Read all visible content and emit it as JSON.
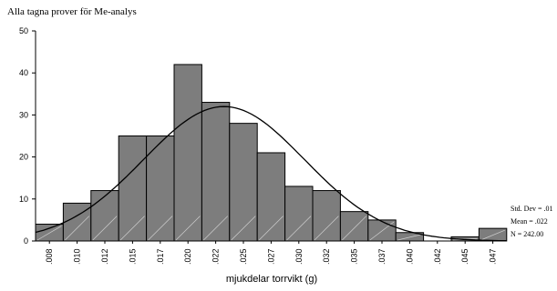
{
  "chart_data": {
    "type": "bar",
    "title": "Alla tagna prover för Me-analys",
    "xlabel": "mjukdelar torrvikt (g)",
    "ylabel": "",
    "ylim": [
      0,
      50
    ],
    "yticks": [
      "0",
      "10",
      "20",
      "30",
      "40",
      "50"
    ],
    "categories": [
      ".008",
      ".010",
      ".012",
      ".015",
      ".017",
      ".020",
      ".022",
      ".025",
      ".027",
      ".030",
      ".032",
      ".035",
      ".037",
      ".040",
      ".042",
      ".045",
      ".047"
    ],
    "values": [
      4,
      9,
      12,
      25,
      25,
      42,
      33,
      28,
      21,
      13,
      12,
      7,
      5,
      2,
      0,
      1,
      3
    ],
    "normal_curve": {
      "mean": 0.022,
      "std_dev_bins": 2.9,
      "peak": 32
    },
    "grid": false,
    "legend": "none",
    "stats": {
      "std_dev": "Std. Dev = .01",
      "mean": "Mean = .022",
      "n": "N = 242.00"
    },
    "colors": {
      "bar": "#7d7d7d",
      "hatch": "#cfcfcf",
      "curve": "#000000"
    }
  }
}
